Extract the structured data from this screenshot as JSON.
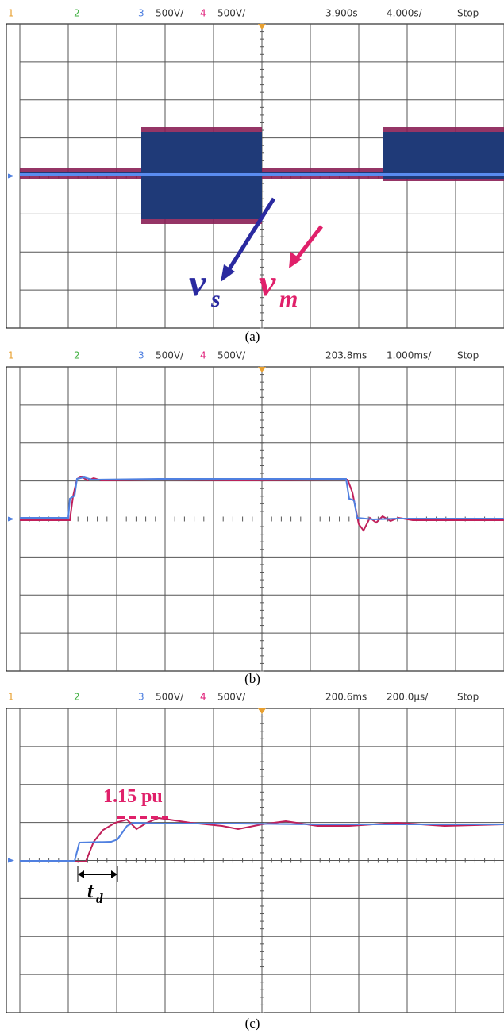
{
  "panels": [
    {
      "header": {
        "ch1": "1",
        "ch2": "2",
        "ch3": "3",
        "ch3_scale": "500V/",
        "ch4": "4",
        "ch4_scale": "500V/",
        "trigger_time": "3.900s",
        "time_scale": "4.000s/",
        "status": "Stop"
      },
      "caption": "(a)",
      "labels": {
        "vs_main": "v",
        "vs_sub": "s",
        "vm_main": "v",
        "vm_sub": "m"
      }
    },
    {
      "header": {
        "ch1": "1",
        "ch2": "2",
        "ch3": "3",
        "ch3_scale": "500V/",
        "ch4": "4",
        "ch4_scale": "500V/",
        "trigger_time": "203.8ms",
        "time_scale": "1.000ms/",
        "status": "Stop"
      },
      "caption": "(b)"
    },
    {
      "header": {
        "ch1": "1",
        "ch2": "2",
        "ch3": "3",
        "ch3_scale": "500V/",
        "ch4": "4",
        "ch4_scale": "500V/",
        "trigger_time": "200.6ms",
        "time_scale": "200.0µs/",
        "status": "Stop"
      },
      "caption": "(c)",
      "labels": {
        "overshoot": "1.15 pu",
        "td_main": "t",
        "td_sub": "d"
      }
    }
  ]
}
